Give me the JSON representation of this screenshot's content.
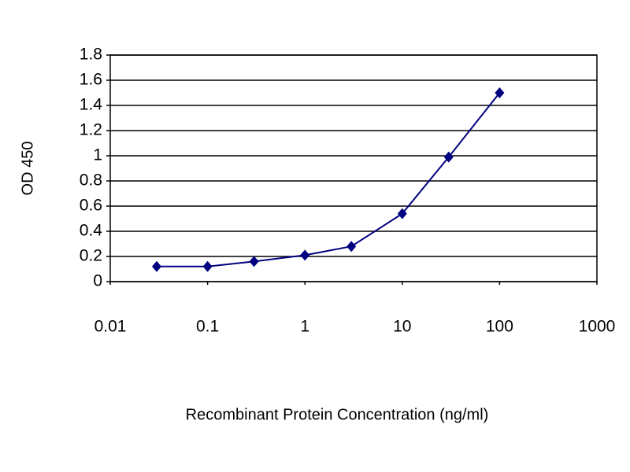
{
  "chart_data": {
    "type": "line",
    "x_label": "Recombinant Protein Concentration (ng/ml)",
    "y_label": "OD 450",
    "x": [
      0.03,
      0.1,
      0.3,
      1,
      3,
      10,
      30,
      100
    ],
    "series": [
      {
        "color": "#000080",
        "values": [
          0.12,
          0.12,
          0.16,
          0.21,
          0.28,
          0.54,
          0.99,
          1.5
        ]
      }
    ],
    "xscale": "log",
    "xlim": [
      0.01,
      1000
    ],
    "xticks": [
      0.01,
      0.1,
      1,
      10,
      100,
      1000
    ],
    "ylim": [
      0,
      1.8
    ],
    "yticks": [
      0,
      0.2,
      0.4,
      0.6,
      0.8,
      1,
      1.2,
      1.4,
      1.6,
      1.8
    ],
    "grid": true
  }
}
